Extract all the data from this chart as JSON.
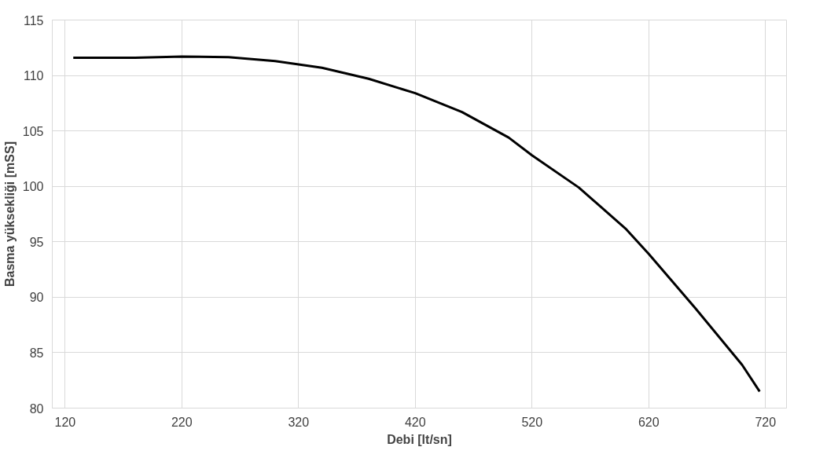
{
  "chart_data": {
    "type": "line",
    "xlabel": "Debi [lt/sn]",
    "ylabel": "Basma yüksekliği [mSS]",
    "x": [
      127,
      180,
      220,
      260,
      300,
      340,
      380,
      420,
      460,
      500,
      520,
      560,
      600,
      620,
      660,
      700,
      715
    ],
    "series": [
      {
        "color": "#000000",
        "values": [
          111.6,
          111.6,
          111.7,
          111.65,
          111.3,
          110.7,
          109.7,
          108.4,
          106.7,
          104.4,
          102.8,
          99.9,
          96.2,
          93.9,
          89.0,
          83.9,
          81.5
        ]
      }
    ],
    "xlim": [
      109,
      738
    ],
    "xticks": [
      120,
      220,
      320,
      420,
      520,
      620,
      720
    ],
    "ylim": [
      80,
      115
    ],
    "yticks": [
      80,
      85,
      90,
      95,
      100,
      105,
      110,
      115
    ],
    "grid": true,
    "marker": "none",
    "line_style": "solid"
  }
}
